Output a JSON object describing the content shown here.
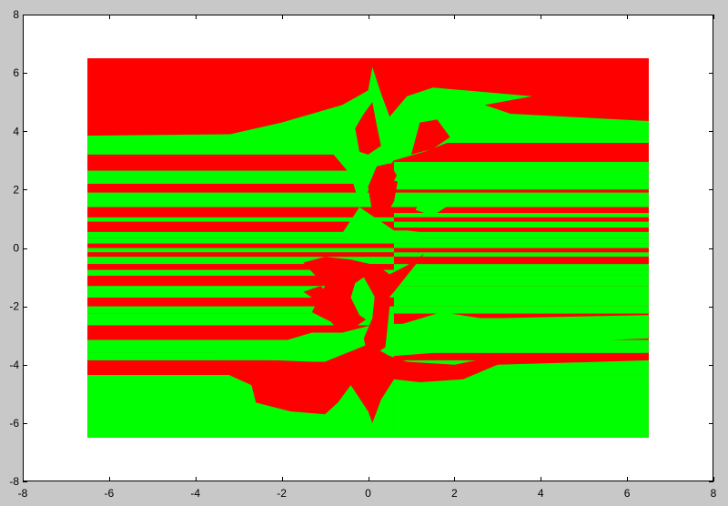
{
  "colors": {
    "figure_bg": "#c8c8c8",
    "axes_bg": "#ffffff",
    "region_a": "#ff0000",
    "region_b": "#00ff00",
    "axis": "#000000"
  },
  "chart_data": {
    "type": "heatmap",
    "title": "",
    "xlabel": "",
    "ylabel": "",
    "xlim": [
      -8,
      8
    ],
    "ylim": [
      -8,
      8
    ],
    "xticks": [
      -8,
      -6,
      -4,
      -2,
      0,
      2,
      4,
      6,
      8
    ],
    "yticks": [
      -8,
      -6,
      -4,
      -2,
      0,
      2,
      4,
      6,
      8
    ],
    "grid": false,
    "data_extent": {
      "x": [
        -6.5,
        6.5
      ],
      "y": [
        -6.5,
        6.5
      ]
    },
    "classes": [
      "red",
      "green"
    ],
    "bands": [
      {
        "y": [
          4.35,
          6.5
        ],
        "left": "red",
        "right": "red"
      },
      {
        "y": [
          3.85,
          4.35
        ],
        "left": "red",
        "right": "green"
      },
      {
        "y": [
          3.6,
          3.85
        ],
        "left": "green",
        "right": "green"
      },
      {
        "y": [
          3.2,
          3.6
        ],
        "left": "green",
        "right": "red"
      },
      {
        "y": [
          2.95,
          3.2
        ],
        "left": "red",
        "right": "red"
      },
      {
        "y": [
          2.65,
          2.95
        ],
        "left": "red",
        "right": "green"
      },
      {
        "y": [
          2.2,
          2.65
        ],
        "left": "green",
        "right": "green"
      },
      {
        "y": [
          2.0,
          2.2
        ],
        "left": "red",
        "right": "green"
      },
      {
        "y": [
          1.9,
          2.0
        ],
        "left": "red",
        "right": "red"
      },
      {
        "y": [
          1.4,
          1.9
        ],
        "left": "green",
        "right": "green"
      },
      {
        "y": [
          1.2,
          1.4
        ],
        "left": "red",
        "right": "red"
      },
      {
        "y": [
          1.05,
          1.2
        ],
        "left": "red",
        "right": "green"
      },
      {
        "y": [
          0.9,
          1.05
        ],
        "left": "green",
        "right": "red"
      },
      {
        "y": [
          0.7,
          0.9
        ],
        "left": "red",
        "right": "green"
      },
      {
        "y": [
          0.55,
          0.7
        ],
        "left": "red",
        "right": "red"
      },
      {
        "y": [
          0.35,
          0.55
        ],
        "left": "green",
        "right": "green"
      },
      {
        "y": [
          0.15,
          0.35
        ],
        "left": "green",
        "right": "green"
      },
      {
        "y": [
          0.0,
          0.15
        ],
        "left": "red",
        "right": "green"
      },
      {
        "y": [
          -0.15,
          0.0
        ],
        "left": "green",
        "right": "red"
      },
      {
        "y": [
          -0.3,
          -0.15
        ],
        "left": "red",
        "right": "green"
      },
      {
        "y": [
          -0.55,
          -0.3
        ],
        "left": "green",
        "right": "red"
      },
      {
        "y": [
          -0.75,
          -0.55
        ],
        "left": "red",
        "right": "green"
      },
      {
        "y": [
          -0.95,
          -0.75
        ],
        "left": "green",
        "right": "green"
      },
      {
        "y": [
          -1.3,
          -0.95
        ],
        "left": "red",
        "right": "green"
      },
      {
        "y": [
          -1.7,
          -1.3
        ],
        "left": "green",
        "right": "green"
      },
      {
        "y": [
          -2.0,
          -1.7
        ],
        "left": "red",
        "right": "green"
      },
      {
        "y": [
          -2.25,
          -2.0
        ],
        "left": "green",
        "right": "green"
      },
      {
        "y": [
          -2.65,
          -2.25
        ],
        "left": "green",
        "right": "red"
      },
      {
        "y": [
          -3.15,
          -2.65
        ],
        "left": "red",
        "right": "red"
      },
      {
        "y": [
          -3.6,
          -3.15
        ],
        "left": "green",
        "right": "green"
      },
      {
        "y": [
          -3.85,
          -3.6
        ],
        "left": "green",
        "right": "red"
      },
      {
        "y": [
          -4.35,
          -3.85
        ],
        "left": "red",
        "right": "green"
      },
      {
        "y": [
          -6.5,
          -4.35
        ],
        "left": "green",
        "right": "green"
      }
    ]
  }
}
